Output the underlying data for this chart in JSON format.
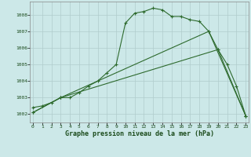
{
  "title": "Graphe pression niveau de la mer (hPa)",
  "bg_color": "#cce8e8",
  "grid_color": "#b0cccc",
  "line_color": "#2d6a2d",
  "x_ticks": [
    0,
    1,
    2,
    3,
    4,
    5,
    6,
    7,
    8,
    9,
    10,
    11,
    12,
    13,
    14,
    15,
    16,
    17,
    18,
    19,
    20,
    21,
    22,
    23
  ],
  "y_ticks": [
    1002,
    1003,
    1004,
    1005,
    1006,
    1007,
    1008
  ],
  "ylim": [
    1001.5,
    1008.8
  ],
  "xlim": [
    -0.3,
    23.3
  ],
  "line1_x": [
    0,
    1,
    2,
    3,
    4,
    5,
    6,
    7,
    8,
    9,
    10,
    11,
    12,
    13,
    14,
    15,
    16,
    17,
    18,
    19,
    20,
    21,
    22,
    23
  ],
  "line1_y": [
    1002.4,
    1002.5,
    1002.7,
    1003.0,
    1003.0,
    1003.3,
    1003.7,
    1004.0,
    1004.5,
    1005.0,
    1007.5,
    1008.1,
    1008.2,
    1008.4,
    1008.3,
    1007.9,
    1007.9,
    1007.7,
    1007.6,
    1007.0,
    1005.9,
    1005.0,
    1003.7,
    1001.9
  ],
  "line2_x": [
    0,
    3,
    19,
    23
  ],
  "line2_y": [
    1002.1,
    1003.0,
    1007.0,
    1001.9
  ],
  "line3_x": [
    0,
    3,
    20,
    23
  ],
  "line3_y": [
    1002.1,
    1003.0,
    1005.9,
    1001.9
  ],
  "tick_fontsize": 4.5,
  "label_fontsize": 6.0,
  "linewidth": 0.8,
  "markersize": 3.5,
  "markeredgewidth": 0.8
}
